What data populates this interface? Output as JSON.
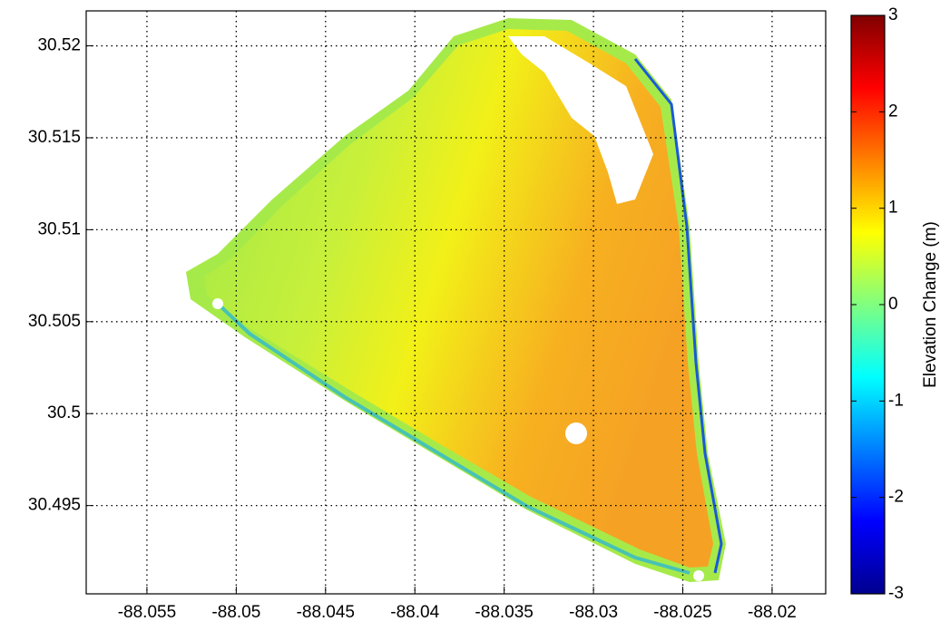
{
  "chart_data": {
    "type": "map",
    "xlim": [
      -88.0584,
      -88.017
    ],
    "xticks": [
      -88.055,
      -88.05,
      -88.045,
      -88.04,
      -88.035,
      -88.03,
      -88.025,
      -88.02
    ],
    "ylim": [
      30.4902,
      30.5219
    ],
    "yticks": [
      30.495,
      30.5,
      30.505,
      30.51,
      30.515,
      30.52
    ],
    "grid": true,
    "colormap": "jet",
    "clim": [
      -3,
      3
    ],
    "cticks": [
      -3,
      -2,
      -1,
      0,
      1,
      2,
      3
    ],
    "colorbar_label": "Elevation Change (m)"
  }
}
